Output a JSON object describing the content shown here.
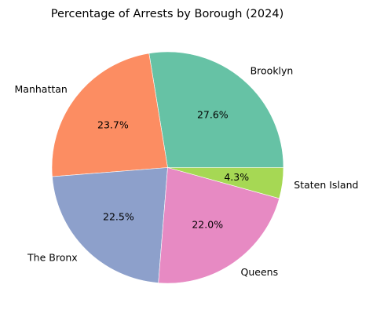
{
  "chart_data": {
    "type": "pie",
    "title": "Percentage of Arrests by Borough (2024)",
    "slices": [
      {
        "label": "Brooklyn",
        "value": 27.6,
        "pct_label": "27.6%",
        "color": "#66c2a5"
      },
      {
        "label": "Manhattan",
        "value": 23.7,
        "pct_label": "23.7%",
        "color": "#fc8d62"
      },
      {
        "label": "The Bronx",
        "value": 22.5,
        "pct_label": "22.5%",
        "color": "#8da0cb"
      },
      {
        "label": "Queens",
        "value": 22.0,
        "pct_label": "22.0%",
        "color": "#e78ac3"
      },
      {
        "label": "Staten Island",
        "value": 4.3,
        "pct_label": "4.3%",
        "color": "#a6d854"
      }
    ],
    "start_angle_deg": 0,
    "direction": "counterclockwise",
    "legend": "none"
  }
}
